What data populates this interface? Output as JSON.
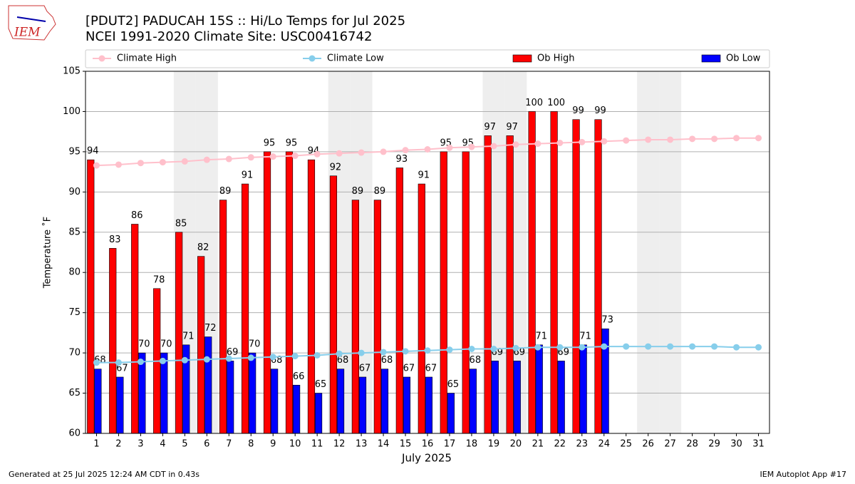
{
  "logo": "IEM",
  "footer_left": "Generated at 25 Jul 2025 12:24 AM CDT in 0.43s",
  "footer_right": "IEM Autoplot App #17",
  "chart_data": {
    "type": "bar",
    "title": "[PDUT2] PADUCAH 15S :: Hi/Lo Temps for Jul 2025",
    "subtitle": "NCEI 1991-2020 Climate Site: USC00416742",
    "x_label": "July 2025",
    "y_label": "Temperature ˚F",
    "categories": [
      "1",
      "2",
      "3",
      "4",
      "5",
      "6",
      "7",
      "8",
      "9",
      "10",
      "11",
      "12",
      "13",
      "14",
      "15",
      "16",
      "17",
      "18",
      "19",
      "20",
      "21",
      "22",
      "23",
      "24",
      "25",
      "26",
      "27",
      "28",
      "29",
      "30",
      "31"
    ],
    "shaded_categories": [
      "5",
      "6",
      "12",
      "13",
      "19",
      "20",
      "26",
      "27"
    ],
    "shade_color": "#eeeeee",
    "ylim": [
      60,
      105
    ],
    "yticks": [
      60,
      65,
      70,
      75,
      80,
      85,
      90,
      95,
      100,
      105
    ],
    "grid": true,
    "series": [
      {
        "name": "Climate High",
        "type": "line",
        "color": "#ffc0cb",
        "values": [
          93.3,
          93.4,
          93.6,
          93.7,
          93.8,
          94.0,
          94.1,
          94.3,
          94.4,
          94.5,
          94.7,
          94.8,
          94.9,
          95.0,
          95.2,
          95.3,
          95.5,
          95.6,
          95.7,
          95.9,
          96.0,
          96.1,
          96.2,
          96.3,
          96.4,
          96.5,
          96.5,
          96.6,
          96.6,
          96.7,
          96.7
        ]
      },
      {
        "name": "Climate Low",
        "type": "line",
        "color": "#87ceeb",
        "values": [
          68.8,
          68.8,
          68.9,
          69.0,
          69.1,
          69.2,
          69.3,
          69.4,
          69.5,
          69.6,
          69.7,
          69.9,
          70.0,
          70.1,
          70.2,
          70.3,
          70.4,
          70.5,
          70.5,
          70.6,
          70.7,
          70.7,
          70.7,
          70.8,
          70.8,
          70.8,
          70.8,
          70.8,
          70.8,
          70.7,
          70.7
        ]
      },
      {
        "name": "Ob High",
        "type": "bar",
        "color": "#ff0000",
        "values": [
          94,
          83,
          86,
          78,
          85,
          82,
          89,
          91,
          95,
          95,
          94,
          92,
          89,
          89,
          93,
          91,
          95,
          95,
          97,
          97,
          100,
          100,
          99,
          99,
          null,
          null,
          null,
          null,
          null,
          null,
          null
        ]
      },
      {
        "name": "Ob Low",
        "type": "bar",
        "color": "#0000ff",
        "values": [
          68,
          67,
          70,
          70,
          71,
          72,
          69,
          70,
          68,
          66,
          65,
          68,
          67,
          68,
          67,
          67,
          65,
          68,
          69,
          69,
          71,
          69,
          71,
          73,
          null,
          null,
          null,
          null,
          null,
          null,
          null
        ]
      }
    ]
  }
}
